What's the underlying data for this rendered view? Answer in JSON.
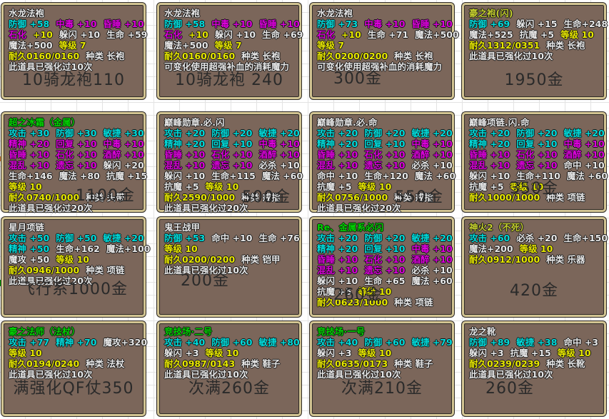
{
  "colors": {
    "cyan": "#00dcdc",
    "magenta": "#dc00dc",
    "white": "#e8e8e8",
    "yellow": "#e8e800",
    "green": "#00d400",
    "yellowgreen": "#c6d02e",
    "box_bg": "#7b665a",
    "box_border": "#d2c492",
    "price": "#2a2a2a",
    "grid_line": "#e3e3e3",
    "accent_green": "#00a000",
    "accent_orange": "#e08a3c"
  },
  "cells": [
    {
      "title": "水龙法袍",
      "title_color": "white",
      "lines": [
        [
          [
            "防御 +58",
            "cyan"
          ],
          [
            "中毒 +10",
            "magenta"
          ],
          [
            "昏睡 +10",
            "magenta"
          ]
        ],
        [
          [
            "石化",
            "magenta"
          ],
          [
            "+10",
            "yellow"
          ],
          [
            "躲闪 +10",
            "white"
          ],
          [
            "生命 +59",
            "white"
          ]
        ],
        [
          [
            "魔法+500",
            "white"
          ],
          [
            "等级 7",
            "yellow"
          ]
        ],
        [
          [
            "耐久0160/0160",
            "yellow"
          ],
          [
            "种类 长袍",
            "white"
          ]
        ],
        [
          [
            "此道具已强化过10次",
            "white"
          ]
        ]
      ],
      "price": "10骑龙袍110",
      "price_align": "center"
    },
    {
      "title": "水龙法袍",
      "title_color": "white",
      "lines": [
        [
          [
            "防御 +58",
            "cyan"
          ],
          [
            "中毒 +10",
            "magenta"
          ],
          [
            "昏睡 +10",
            "magenta"
          ]
        ],
        [
          [
            "石化",
            "magenta"
          ],
          [
            "+10",
            "yellow"
          ],
          [
            "躲闪 +10",
            "white"
          ],
          [
            "生命 +69",
            "white"
          ]
        ],
        [
          [
            "魔法+500",
            "white"
          ],
          [
            "等级 7",
            "yellow"
          ]
        ],
        [
          [
            "耐久0160/0160",
            "yellow"
          ],
          [
            "种类 长袍",
            "white"
          ]
        ],
        [
          [
            "可变化使用超强补血的消耗魔力",
            "white"
          ]
        ]
      ],
      "price": "10骑龙袍 240",
      "price_align": "center"
    },
    {
      "title": "水龙法袍",
      "title_color": "white",
      "lines": [
        [
          [
            "防御 +73",
            "cyan"
          ],
          [
            "中毒 +10",
            "magenta"
          ],
          [
            "昏睡 +10",
            "magenta"
          ]
        ],
        [
          [
            "石化",
            "magenta"
          ],
          [
            "+10",
            "yellow"
          ],
          [
            "生命 +71",
            "white"
          ],
          [
            "魔法+500",
            "white"
          ]
        ],
        [
          [
            "等级 7",
            "yellow"
          ]
        ],
        [
          [
            "耐久0200/0200",
            "yellow"
          ],
          [
            "种类 长袍",
            "white"
          ]
        ],
        [
          [
            "可变化使用超强补血的消耗魔力",
            "white"
          ]
        ]
      ],
      "price": "300金",
      "price_align": "left"
    },
    {
      "title": "豪之袍(闪)",
      "title_color": "yellowgreen",
      "lines": [
        [
          [
            "防御 +69",
            "cyan"
          ],
          [
            "躲闪 +15",
            "white"
          ],
          [
            "生命+248",
            "white"
          ]
        ],
        [
          [
            "魔法+525",
            "white"
          ],
          [
            "抗魔 +5",
            "white"
          ],
          [
            "等级 10",
            "yellow"
          ]
        ],
        [
          [
            "耐久1312/0351",
            "yellow"
          ],
          [
            "种类 长袍",
            "white"
          ]
        ],
        [
          [
            "此道具已强化过10次",
            "white"
          ]
        ]
      ],
      "price": "1950金",
      "price_align": "center"
    },
    {
      "title": "超之冰霜（金属）",
      "title_color": "green",
      "lines": [
        [
          [
            "攻击 +30",
            "cyan"
          ],
          [
            "防御 +30",
            "cyan"
          ],
          [
            "敏捷 +30",
            "cyan"
          ]
        ],
        [
          [
            "精神 +20",
            "magenta"
          ],
          [
            "回复 +10",
            "magenta"
          ],
          [
            "中毒 +10",
            "magenta"
          ]
        ],
        [
          [
            "昏睡 +10",
            "magenta"
          ],
          [
            "石化 +10",
            "magenta"
          ],
          [
            "酒醉 +10",
            "magenta"
          ]
        ],
        [
          [
            "混乱 +10",
            "magenta"
          ],
          [
            "遗忘 +10",
            "magenta"
          ],
          [
            "躲闪 +20",
            "white"
          ]
        ],
        [
          [
            "生命+146",
            "white"
          ],
          [
            "魔法 +80",
            "white"
          ],
          [
            "抗魔 +15",
            "white"
          ]
        ],
        [
          [
            "等级 10",
            "yellow"
          ]
        ],
        [
          [
            "耐久0740/1000",
            "yellow"
          ],
          [
            "种类 头带",
            "white"
          ]
        ],
        [
          [
            "此道具已强化过20次",
            "white"
          ]
        ]
      ],
      "price": "1100金",
      "price_align": "right"
    },
    {
      "title": "巅峰勋章.必.闪",
      "title_color": "white",
      "lines": [
        [
          [
            "攻击 +20",
            "cyan"
          ],
          [
            "防御 +20",
            "cyan"
          ],
          [
            "敏捷 +20",
            "cyan"
          ]
        ],
        [
          [
            "精神 +20",
            "cyan"
          ],
          [
            "回复 +10",
            "cyan"
          ],
          [
            "中毒 +10",
            "magenta"
          ]
        ],
        [
          [
            "昏睡 +10",
            "magenta"
          ],
          [
            "石化 +10",
            "magenta"
          ],
          [
            "酒醉 +10",
            "magenta"
          ]
        ],
        [
          [
            "混乱 +10",
            "magenta"
          ],
          [
            "遗忘 +10",
            "magenta"
          ],
          [
            "必杀 +10",
            "white"
          ]
        ],
        [
          [
            "躲闪 +10",
            "white"
          ],
          [
            "生命+115",
            "white"
          ],
          [
            "魔法 +60",
            "white"
          ]
        ],
        [
          [
            "抗魔 +5",
            "white"
          ],
          [
            "等级 10",
            "yellow"
          ]
        ],
        [
          [
            "耐久2590/1000",
            "yellow"
          ],
          [
            "种类 戒指",
            "white"
          ]
        ],
        [
          [
            "此道具已强化过20次",
            "white"
          ]
        ]
      ],
      "price": "500金",
      "price_align": "right"
    },
    {
      "title": "巅峰勋章.必.命",
      "title_color": "white",
      "lines": [
        [
          [
            "攻击 +20",
            "cyan"
          ],
          [
            "防御 +20",
            "cyan"
          ],
          [
            "敏捷 +20",
            "cyan"
          ]
        ],
        [
          [
            "精神 +20",
            "cyan"
          ],
          [
            "回复 +10",
            "cyan"
          ],
          [
            "中毒 +10",
            "magenta"
          ]
        ],
        [
          [
            "昏睡 +10",
            "magenta"
          ],
          [
            "石化 +10",
            "magenta"
          ],
          [
            "酒醉 +10",
            "magenta"
          ]
        ],
        [
          [
            "混乱 +10",
            "magenta"
          ],
          [
            "遗忘 +10",
            "magenta"
          ],
          [
            "必杀 +10",
            "white"
          ]
        ],
        [
          [
            "命中 +10",
            "white"
          ],
          [
            "生命+120",
            "white"
          ],
          [
            "魔法 +60",
            "white"
          ]
        ],
        [
          [
            "抗魔 +5",
            "white"
          ],
          [
            "等级 10",
            "yellow"
          ]
        ],
        [
          [
            "耐久0756/1000",
            "yellow"
          ],
          [
            "种类 戒指",
            "white"
          ]
        ],
        [
          [
            "此道具已强化过20次",
            "white"
          ]
        ]
      ],
      "price": "550金",
      "price_align": "right"
    },
    {
      "title": "巅峰项链.闪.命",
      "title_color": "white",
      "lines": [
        [
          [
            "攻击 +20",
            "cyan"
          ],
          [
            "防御 +20",
            "cyan"
          ],
          [
            "敏捷 +20",
            "cyan"
          ]
        ],
        [
          [
            "精神 +20",
            "cyan"
          ],
          [
            "回复 +10",
            "cyan"
          ],
          [
            "中毒 +10",
            "magenta"
          ]
        ],
        [
          [
            "昏睡 +10",
            "magenta"
          ],
          [
            "石化 +10",
            "magenta"
          ],
          [
            "酒醉 +10",
            "magenta"
          ]
        ],
        [
          [
            "混乱 +10",
            "magenta"
          ],
          [
            "遗忘 +10",
            "magenta"
          ],
          [
            "命中 +10",
            "white"
          ]
        ],
        [
          [
            "躲闪 +10",
            "white"
          ],
          [
            "生命+110",
            "white"
          ],
          [
            "魔法 +60",
            "white"
          ]
        ],
        [
          [
            "抗魔 +5",
            "white"
          ],
          [
            "等级 10",
            "yellow"
          ]
        ],
        [
          [
            "耐久1000/1000",
            "yellow"
          ],
          [
            "种类 项链",
            "white"
          ]
        ]
      ],
      "price": "350金",
      "price_align": "center"
    },
    {
      "title": "星月项链",
      "title_color": "white",
      "lines": [
        [
          [
            "攻击 +50",
            "cyan"
          ],
          [
            "防御 +50",
            "cyan"
          ],
          [
            "敏捷 +20",
            "cyan"
          ]
        ],
        [
          [
            "精神 +50",
            "cyan"
          ],
          [
            "生命+162",
            "white"
          ],
          [
            "魔法+100",
            "white"
          ]
        ],
        [
          [
            "魔攻 +50",
            "white"
          ],
          [
            "等级 10",
            "yellow"
          ]
        ],
        [
          [
            "耐久0946/1000",
            "yellow"
          ],
          [
            "种类 项链",
            "white"
          ]
        ],
        [
          [
            "此道具已强化过20次",
            "white"
          ]
        ]
      ],
      "price": "飞行系1000金",
      "price_align": "center"
    },
    {
      "title": "鬼王战甲",
      "title_color": "white",
      "lines": [
        [
          [
            "防御 +53",
            "cyan"
          ],
          [
            "命中 +10",
            "white"
          ],
          [
            "生命 +76",
            "white"
          ]
        ],
        [
          [
            "等级 10",
            "yellow"
          ]
        ],
        [
          [
            "耐久0200/0200",
            "yellow"
          ],
          [
            "种类 铠甲",
            "white"
          ]
        ],
        [
          [
            "此道具已强化过10次",
            "white"
          ]
        ]
      ],
      "price": "200金",
      "price_align": "left"
    },
    {
      "title": "Re、金属系必闪",
      "title_color": "green",
      "lines": [
        [
          [
            "攻击 +20",
            "cyan"
          ],
          [
            "防御 +20",
            "cyan"
          ],
          [
            "敏捷 +20",
            "cyan"
          ]
        ],
        [
          [
            "精神 +20",
            "cyan"
          ],
          [
            "回复 +10",
            "cyan"
          ],
          [
            "中毒 +10",
            "magenta"
          ]
        ],
        [
          [
            "昏睡 +10",
            "magenta"
          ],
          [
            "石化 +10",
            "magenta"
          ],
          [
            "酒醉 +10",
            "magenta"
          ]
        ],
        [
          [
            "混乱 +10",
            "magenta"
          ],
          [
            "遗忘 +10",
            "magenta"
          ],
          [
            "必杀 +10",
            "white"
          ]
        ],
        [
          [
            "躲闪 +10",
            "white"
          ],
          [
            "生命 +65",
            "white"
          ],
          [
            "魔法 +60",
            "white"
          ]
        ],
        [
          [
            "抗魔 +5",
            "white"
          ],
          [
            "等级 10",
            "yellow"
          ]
        ],
        [
          [
            "耐久0623/1000",
            "yellow"
          ],
          [
            "种类 项链",
            "white"
          ]
        ]
      ],
      "price": "260金",
      "price_align": "left"
    },
    {
      "title": "神火2（不死）",
      "title_color": "yellowgreen",
      "lines": [
        [
          [
            "攻击 +60",
            "cyan"
          ],
          [
            "必杀 +20",
            "white"
          ],
          [
            "生命+150",
            "white"
          ]
        ],
        [
          [
            "魔法+200",
            "white"
          ],
          [
            "等级 10",
            "yellow"
          ]
        ],
        [
          [
            "耐久0912/1000",
            "yellow"
          ],
          [
            "种类 乐器",
            "white"
          ]
        ]
      ],
      "price": "420金",
      "price_align": "center"
    },
    {
      "title": "豪之法师（法杖）",
      "title_color": "green",
      "lines": [
        [
          [
            "攻击 +77",
            "cyan"
          ],
          [
            "精神 +70",
            "cyan"
          ],
          [
            "魔攻+320",
            "white"
          ]
        ],
        [
          [
            "等级 10",
            "yellow"
          ]
        ],
        [
          [
            "耐久0194/0240",
            "yellow"
          ],
          [
            "种类 法杖",
            "white"
          ]
        ],
        [
          [
            "此道具已强化过10次",
            "white"
          ]
        ]
      ],
      "price": "满强化QF仗350",
      "price_align": "center"
    },
    {
      "title": "竞技场·二号",
      "title_color": "green",
      "lines": [
        [
          [
            "攻击 +40",
            "cyan"
          ],
          [
            "防御 +60",
            "cyan"
          ],
          [
            "敏捷 +80",
            "cyan"
          ]
        ],
        [
          [
            "躲闪 +3",
            "white"
          ],
          [
            "等级 10",
            "yellow"
          ]
        ],
        [
          [
            "耐久0987/0143",
            "yellow"
          ],
          [
            "种类 鞋子",
            "white"
          ]
        ],
        [
          [
            "此道具已强化过10次",
            "white"
          ]
        ]
      ],
      "price": "次满260金",
      "price_align": "center"
    },
    {
      "title": "竞技场·一号",
      "title_color": "green",
      "lines": [
        [
          [
            "攻击 +40",
            "cyan"
          ],
          [
            "防御 +60",
            "cyan"
          ],
          [
            "敏捷 +79",
            "cyan"
          ]
        ],
        [
          [
            "躲闪 +3",
            "white"
          ],
          [
            "等级 10",
            "yellow"
          ]
        ],
        [
          [
            "耐久0635/0173",
            "yellow"
          ],
          [
            "种类 鞋子",
            "white"
          ]
        ],
        [
          [
            "此道具已强化过10次",
            "white"
          ]
        ]
      ],
      "price": "次满210金",
      "price_align": "center"
    },
    {
      "title": "龙之靴",
      "title_color": "white",
      "lines": [
        [
          [
            "防御 +89",
            "cyan"
          ],
          [
            "敏捷 +38",
            "cyan"
          ],
          [
            "命中 +3",
            "white"
          ]
        ],
        [
          [
            "躲闪 +3",
            "white"
          ],
          [
            "抗魔 +15",
            "white"
          ],
          [
            "等级 10",
            "yellow"
          ]
        ],
        [
          [
            "耐久0239/0239",
            "yellow"
          ],
          [
            "种类 长靴",
            "white"
          ]
        ],
        [
          [
            "此道具已强化过10次",
            "white"
          ]
        ]
      ],
      "price": "260金",
      "price_align": "left"
    }
  ]
}
